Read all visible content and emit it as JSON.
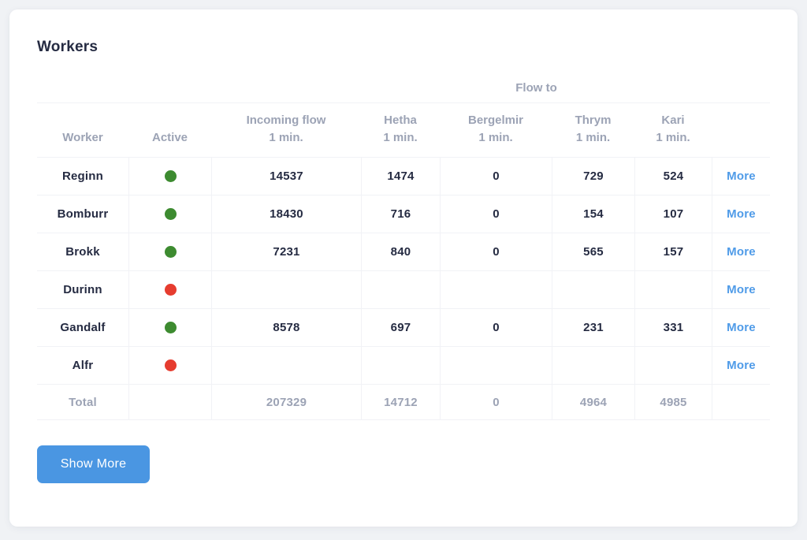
{
  "card": {
    "title": "Workers",
    "show_more_label": "Show More"
  },
  "table": {
    "group_header": "Flow to",
    "columns": {
      "worker": {
        "label": "Worker"
      },
      "active": {
        "label": "Active"
      },
      "incoming": {
        "label": "Incoming flow",
        "sub": "1 min."
      },
      "hetha": {
        "label": "Hetha",
        "sub": "1 min."
      },
      "bergelmir": {
        "label": "Bergelmir",
        "sub": "1 min."
      },
      "thrym": {
        "label": "Thrym",
        "sub": "1 min."
      },
      "kari": {
        "label": "Kari",
        "sub": "1 min."
      }
    },
    "more_label": "More",
    "rows": [
      {
        "worker": "Reginn",
        "active": true,
        "incoming": "14537",
        "hetha": "1474",
        "bergelmir": "0",
        "thrym": "729",
        "kari": "524"
      },
      {
        "worker": "Bomburr",
        "active": true,
        "incoming": "18430",
        "hetha": "716",
        "bergelmir": "0",
        "thrym": "154",
        "kari": "107"
      },
      {
        "worker": "Brokk",
        "active": true,
        "incoming": "7231",
        "hetha": "840",
        "bergelmir": "0",
        "thrym": "565",
        "kari": "157"
      },
      {
        "worker": "Durinn",
        "active": false,
        "incoming": "",
        "hetha": "",
        "bergelmir": "",
        "thrym": "",
        "kari": ""
      },
      {
        "worker": "Gandalf",
        "active": true,
        "incoming": "8578",
        "hetha": "697",
        "bergelmir": "0",
        "thrym": "231",
        "kari": "331"
      },
      {
        "worker": "Alfr",
        "active": false,
        "incoming": "",
        "hetha": "",
        "bergelmir": "",
        "thrym": "",
        "kari": ""
      }
    ],
    "total": {
      "label": "Total",
      "incoming": "207329",
      "hetha": "14712",
      "bergelmir": "0",
      "thrym": "4964",
      "kari": "4985"
    }
  },
  "colors": {
    "active_on": "#3d8b30",
    "active_off": "#e63c2f",
    "link": "#4f9be8",
    "button": "#4a96e2"
  }
}
